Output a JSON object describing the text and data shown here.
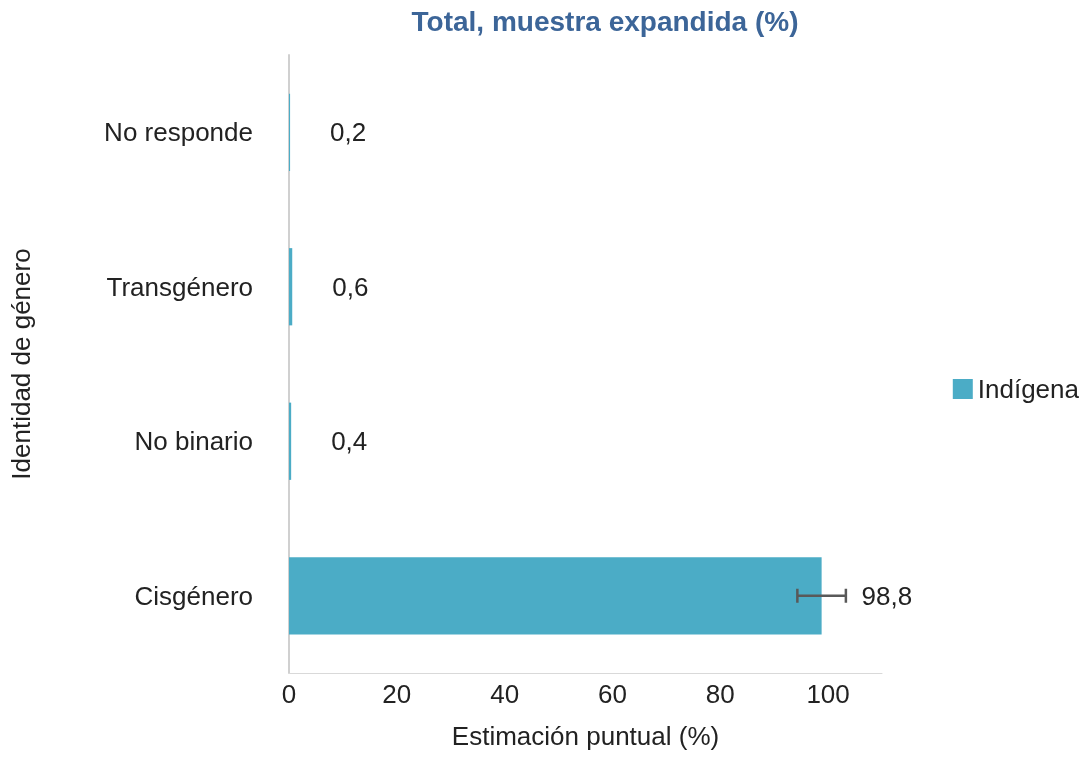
{
  "chart_data": {
    "type": "bar",
    "orientation": "horizontal",
    "title": "Total, muestra expandida (%)",
    "xlabel": "Estimación puntual (%)",
    "ylabel": "Identidad de género",
    "categories": [
      "No responde",
      "Transgénero",
      "No binario",
      "Cisgénero"
    ],
    "series": [
      {
        "name": "Indígena",
        "color": "#4bacc6",
        "values": [
          0.2,
          0.6,
          0.4,
          98.8
        ],
        "errors": [
          null,
          null,
          null,
          4.5
        ],
        "value_labels": [
          "0,2",
          "0,6",
          "0,4",
          "98,8"
        ]
      }
    ],
    "xlim": [
      0,
      110
    ],
    "xticks": [
      0,
      20,
      40,
      60,
      80,
      100
    ],
    "grid": false,
    "legend": "right"
  }
}
